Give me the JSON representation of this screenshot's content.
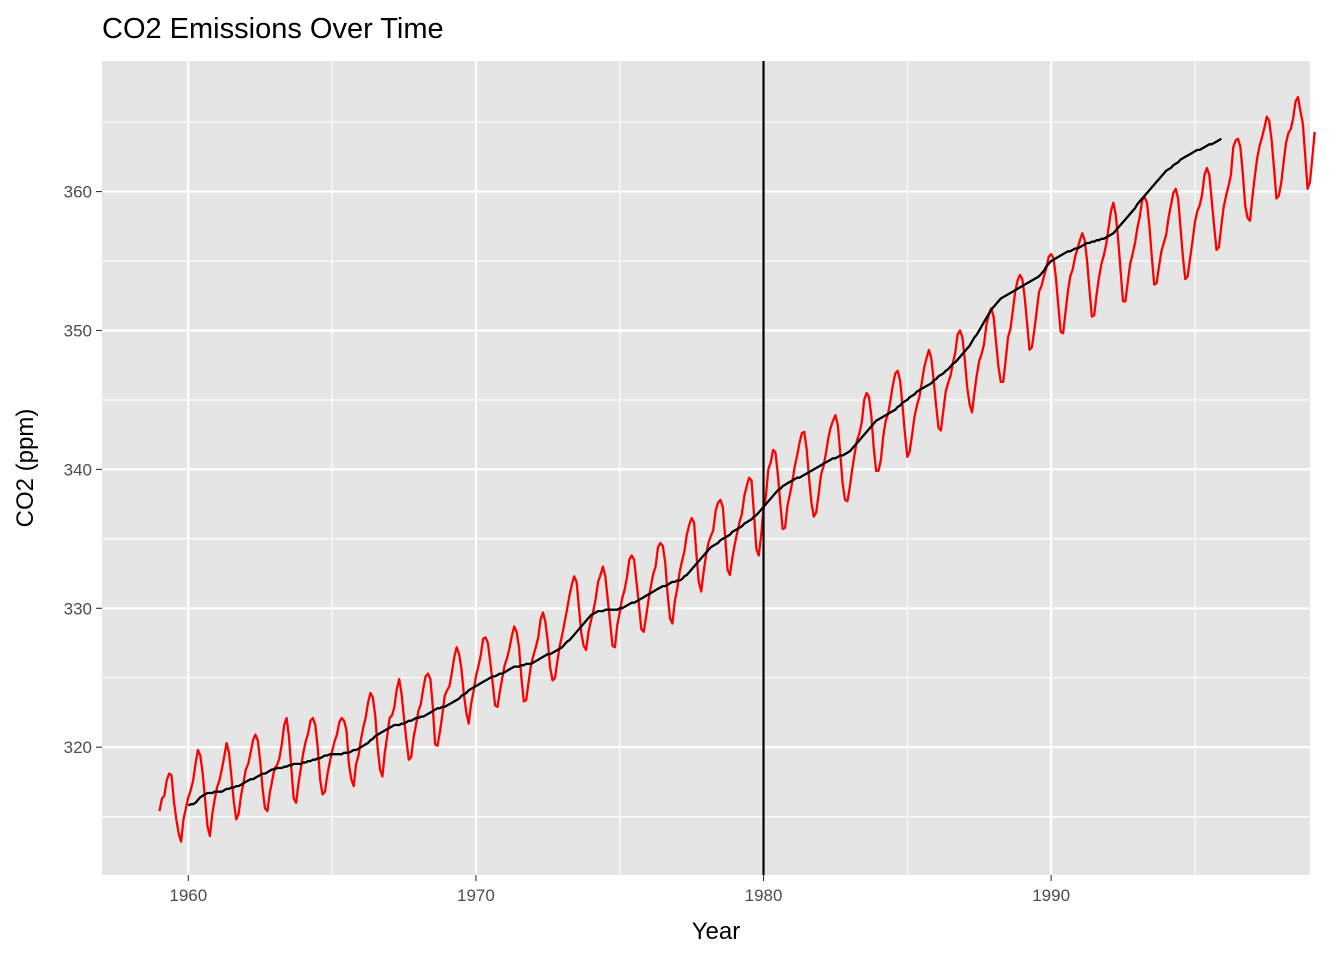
{
  "chart_data": {
    "type": "line",
    "title": "CO2 Emissions Over Time",
    "xlabel": "Year",
    "ylabel": "CO2 (ppm)",
    "xlim": [
      1957.0,
      1999.0
    ],
    "ylim": [
      310.8,
      369.4
    ],
    "x_ticks": [
      1960,
      1970,
      1980,
      1990
    ],
    "x_tick_labels": [
      "1960",
      "1970",
      "1980",
      "1990"
    ],
    "y_ticks": [
      320,
      330,
      340,
      350,
      360
    ],
    "y_tick_labels": [
      "320",
      "330",
      "340",
      "350",
      "360"
    ],
    "grid": true,
    "background": "#e5e5e5",
    "vline": {
      "x": 1980,
      "color": "#000000"
    },
    "series": [
      {
        "color": "#ff0000",
        "x_start": 1959.0,
        "x_step": 0.08333,
        "values": [
          315.4,
          316.3,
          316.5,
          317.6,
          318.1,
          318.0,
          316.1,
          314.8,
          313.8,
          313.2,
          314.8,
          315.6,
          316.4,
          316.9,
          317.6,
          318.8,
          319.8,
          319.4,
          318.1,
          316.2,
          314.3,
          313.6,
          315.2,
          316.2,
          317.1,
          317.6,
          318.4,
          319.3,
          320.3,
          319.6,
          317.9,
          316.1,
          314.8,
          315.2,
          316.5,
          317.4,
          318.4,
          318.8,
          319.6,
          320.5,
          320.9,
          320.5,
          319.0,
          317.0,
          315.6,
          315.4,
          316.7,
          317.6,
          318.5,
          318.7,
          319.2,
          320.2,
          321.6,
          322.1,
          320.8,
          318.5,
          316.3,
          316.0,
          317.4,
          318.5,
          319.6,
          320.4,
          321.0,
          321.9,
          322.1,
          321.6,
          320.0,
          317.7,
          316.6,
          316.8,
          318.0,
          318.9,
          319.7,
          320.4,
          320.9,
          321.8,
          322.1,
          321.9,
          321.2,
          318.8,
          317.7,
          317.2,
          318.8,
          319.4,
          320.5,
          321.4,
          322.1,
          323.2,
          323.9,
          323.6,
          322.3,
          320.0,
          318.4,
          317.9,
          319.6,
          320.8,
          322.1,
          322.3,
          322.9,
          324.2,
          324.9,
          323.8,
          322.1,
          320.5,
          319.1,
          319.3,
          320.7,
          321.6,
          322.6,
          323.1,
          324.2,
          325.1,
          325.3,
          324.9,
          322.9,
          320.2,
          320.1,
          321.1,
          322.3,
          323.7,
          324.1,
          324.4,
          325.4,
          326.5,
          327.2,
          326.7,
          325.6,
          323.8,
          322.5,
          321.7,
          323.1,
          324.0,
          325.1,
          325.8,
          326.6,
          327.8,
          327.9,
          327.5,
          326.1,
          324.6,
          323.0,
          322.9,
          324.0,
          325.0,
          325.9,
          326.4,
          327.1,
          328.0,
          328.7,
          328.3,
          327.2,
          325.0,
          323.3,
          323.4,
          324.7,
          325.9,
          326.6,
          327.2,
          327.9,
          329.2,
          329.7,
          329.0,
          327.6,
          325.7,
          324.8,
          325.0,
          326.2,
          327.3,
          328.1,
          329.0,
          329.9,
          330.9,
          331.7,
          332.3,
          331.9,
          330.0,
          328.2,
          327.3,
          327.0,
          328.3,
          329.1,
          329.8,
          330.7,
          331.9,
          332.4,
          333.0,
          332.3,
          330.7,
          329.0,
          327.3,
          327.2,
          328.8,
          329.7,
          330.7,
          331.3,
          332.2,
          333.5,
          333.8,
          333.5,
          331.9,
          330.3,
          328.5,
          328.3,
          329.4,
          330.6,
          331.6,
          332.5,
          333.0,
          334.4,
          334.7,
          334.5,
          333.3,
          331.0,
          329.3,
          328.9,
          330.5,
          331.4,
          332.6,
          333.4,
          334.1,
          335.3,
          336.0,
          336.5,
          336.2,
          333.9,
          331.9,
          331.2,
          332.6,
          333.8,
          334.7,
          335.2,
          335.6,
          337.0,
          337.6,
          337.8,
          337.3,
          335.1,
          332.8,
          332.4,
          333.6,
          334.6,
          335.4,
          336.2,
          336.8,
          338.1,
          338.8,
          339.4,
          339.2,
          336.9,
          334.3,
          333.8,
          335.2,
          337.1,
          338.1,
          340.0,
          340.5,
          341.4,
          341.2,
          339.6,
          337.5,
          335.7,
          335.8,
          337.4,
          338.2,
          339.1,
          340.2,
          341.0,
          341.9,
          342.6,
          342.7,
          341.5,
          339.4,
          337.6,
          336.6,
          336.9,
          338.2,
          339.6,
          340.2,
          341.1,
          342.2,
          343.0,
          343.5,
          343.9,
          343.2,
          341.2,
          339.0,
          337.8,
          337.7,
          338.7,
          340.0,
          341.1,
          342.1,
          342.6,
          343.4,
          345.0,
          345.5,
          345.2,
          343.8,
          341.6,
          339.9,
          339.9,
          340.7,
          342.4,
          343.5,
          344.0,
          345.0,
          346.1,
          346.9,
          347.1,
          346.4,
          344.6,
          342.6,
          340.9,
          341.3,
          342.5,
          343.8,
          344.6,
          345.2,
          346.2,
          347.3,
          348.0,
          348.6,
          348.0,
          346.4,
          344.6,
          343.0,
          342.8,
          344.2,
          345.6,
          346.2,
          346.7,
          347.6,
          348.4,
          349.7,
          350.0,
          349.5,
          347.9,
          345.9,
          344.7,
          344.1,
          345.5,
          346.8,
          347.8,
          348.3,
          349.0,
          350.4,
          351.1,
          351.6,
          351.0,
          349.2,
          347.4,
          346.3,
          346.3,
          347.8,
          349.5,
          350.1,
          351.4,
          352.8,
          353.6,
          354.0,
          353.7,
          352.4,
          350.5,
          348.6,
          348.8,
          350.0,
          351.4,
          352.8,
          353.2,
          353.9,
          354.5,
          355.3,
          355.5,
          355.2,
          353.8,
          351.8,
          349.9,
          349.8,
          351.3,
          352.8,
          353.9,
          354.4,
          355.3,
          355.9,
          356.5,
          357.0,
          356.5,
          355.0,
          352.9,
          351.0,
          351.1,
          352.6,
          353.8,
          354.8,
          355.4,
          356.2,
          357.4,
          358.6,
          359.2,
          358.3,
          356.5,
          354.3,
          352.1,
          352.1,
          353.5,
          354.8,
          355.5,
          356.3,
          357.4,
          358.2,
          359.4,
          359.6,
          359.2,
          357.5,
          355.3,
          353.3,
          353.4,
          354.6,
          355.7,
          356.3,
          356.9,
          358.1,
          359.0,
          359.9,
          360.2,
          359.5,
          357.4,
          355.3,
          353.7,
          353.9,
          355.2,
          356.4,
          357.8,
          358.6,
          359.0,
          359.8,
          361.2,
          361.7,
          361.2,
          359.4,
          357.5,
          355.8,
          356.0,
          357.5,
          358.9,
          359.7,
          360.4,
          361.2,
          363.2,
          363.7,
          363.8,
          363.2,
          361.3,
          359.0,
          358.1,
          357.9,
          359.6,
          361.1,
          362.4,
          363.3,
          363.9,
          364.6,
          365.4,
          365.1,
          363.7,
          361.7,
          359.5,
          359.7,
          360.6,
          362.1,
          363.5,
          364.2,
          364.5,
          365.3,
          366.5,
          366.8,
          365.8,
          364.9,
          362.6,
          360.2,
          360.7,
          362.5,
          364.3
        ]
      },
      {
        "color": "#000000",
        "x_start": 1960.0,
        "x_step": 0.08333,
        "values": [
          315.8,
          315.9,
          315.9,
          316.0,
          316.2,
          316.4,
          316.5,
          316.6,
          316.7,
          316.7,
          316.7,
          316.8,
          316.8,
          316.8,
          316.8,
          316.9,
          317.0,
          317.0,
          317.1,
          317.1,
          317.2,
          317.2,
          317.3,
          317.4,
          317.5,
          317.6,
          317.7,
          317.7,
          317.8,
          317.9,
          318.0,
          318.1,
          318.1,
          318.2,
          318.3,
          318.4,
          318.4,
          318.5,
          318.5,
          318.5,
          318.6,
          318.6,
          318.7,
          318.7,
          318.8,
          318.8,
          318.8,
          318.8,
          318.9,
          318.9,
          319.0,
          319.0,
          319.1,
          319.1,
          319.2,
          319.2,
          319.3,
          319.4,
          319.4,
          319.5,
          319.5,
          319.5,
          319.5,
          319.5,
          319.5,
          319.6,
          319.6,
          319.6,
          319.7,
          319.8,
          319.8,
          319.9,
          320.0,
          320.1,
          320.2,
          320.3,
          320.5,
          320.6,
          320.8,
          320.9,
          321.0,
          321.1,
          321.2,
          321.3,
          321.4,
          321.5,
          321.6,
          321.6,
          321.6,
          321.7,
          321.7,
          321.8,
          321.9,
          321.9,
          322.0,
          322.1,
          322.1,
          322.2,
          322.2,
          322.3,
          322.4,
          322.5,
          322.6,
          322.7,
          322.8,
          322.8,
          322.9,
          322.9,
          323.0,
          323.1,
          323.2,
          323.3,
          323.4,
          323.5,
          323.7,
          323.8,
          323.9,
          324.1,
          324.2,
          324.3,
          324.4,
          324.5,
          324.6,
          324.7,
          324.8,
          324.9,
          325.0,
          325.1,
          325.1,
          325.2,
          325.3,
          325.3,
          325.4,
          325.5,
          325.6,
          325.7,
          325.8,
          325.8,
          325.8,
          325.9,
          325.9,
          326.0,
          326.0,
          326.0,
          326.1,
          326.2,
          326.3,
          326.4,
          326.5,
          326.6,
          326.7,
          326.7,
          326.8,
          326.9,
          327.0,
          327.1,
          327.2,
          327.4,
          327.6,
          327.7,
          327.9,
          328.1,
          328.3,
          328.5,
          328.7,
          328.9,
          329.1,
          329.3,
          329.5,
          329.6,
          329.7,
          329.8,
          329.8,
          329.8,
          329.9,
          329.9,
          329.9,
          329.9,
          329.9,
          329.9,
          330.0,
          330.0,
          330.1,
          330.2,
          330.3,
          330.4,
          330.4,
          330.5,
          330.6,
          330.7,
          330.8,
          330.9,
          331.0,
          331.1,
          331.2,
          331.3,
          331.4,
          331.5,
          331.6,
          331.6,
          331.7,
          331.8,
          331.9,
          331.9,
          332.0,
          332.0,
          332.1,
          332.3,
          332.4,
          332.6,
          332.8,
          333.0,
          333.2,
          333.4,
          333.6,
          333.8,
          334.0,
          334.2,
          334.4,
          334.5,
          334.6,
          334.7,
          334.9,
          335.0,
          335.1,
          335.2,
          335.3,
          335.5,
          335.6,
          335.7,
          335.8,
          335.9,
          336.1,
          336.2,
          336.3,
          336.4,
          336.6,
          336.7,
          336.9,
          337.1,
          337.3,
          337.5,
          337.7,
          337.9,
          338.1,
          338.3,
          338.5,
          338.6,
          338.8,
          338.9,
          339.0,
          339.1,
          339.2,
          339.3,
          339.4,
          339.4,
          339.5,
          339.6,
          339.7,
          339.8,
          339.9,
          340.0,
          340.1,
          340.2,
          340.3,
          340.4,
          340.5,
          340.6,
          340.7,
          340.8,
          340.8,
          340.9,
          341.0,
          341.0,
          341.1,
          341.2,
          341.3,
          341.5,
          341.7,
          341.9,
          342.1,
          342.3,
          342.5,
          342.7,
          342.9,
          343.1,
          343.3,
          343.5,
          343.6,
          343.7,
          343.8,
          343.9,
          344.0,
          344.1,
          344.2,
          344.3,
          344.5,
          344.6,
          344.8,
          344.9,
          345.0,
          345.2,
          345.3,
          345.4,
          345.6,
          345.7,
          345.8,
          345.9,
          346.0,
          346.1,
          346.2,
          346.4,
          346.5,
          346.7,
          346.8,
          346.9,
          347.1,
          347.2,
          347.4,
          347.6,
          347.7,
          347.9,
          348.1,
          348.3,
          348.5,
          348.7,
          348.9,
          349.2,
          349.5,
          349.7,
          350.0,
          350.3,
          350.6,
          350.9,
          351.2,
          351.5,
          351.7,
          351.9,
          352.1,
          352.3,
          352.4,
          352.5,
          352.6,
          352.7,
          352.8,
          352.9,
          353.0,
          353.1,
          353.2,
          353.3,
          353.4,
          353.5,
          353.6,
          353.7,
          353.8,
          353.9,
          354.1,
          354.3,
          354.6,
          354.8,
          355.0,
          355.1,
          355.2,
          355.3,
          355.4,
          355.5,
          355.6,
          355.7,
          355.7,
          355.8,
          355.9,
          355.9,
          356.0,
          356.1,
          356.2,
          356.3,
          356.3,
          356.4,
          356.4,
          356.5,
          356.5,
          356.6,
          356.6,
          356.7,
          356.8,
          356.9,
          357.0,
          357.2,
          357.4,
          357.6,
          357.8,
          358.0,
          358.2,
          358.4,
          358.6,
          358.8,
          359.1,
          359.3,
          359.5,
          359.7,
          359.9,
          360.1,
          360.3,
          360.5,
          360.7,
          360.9,
          361.1,
          361.3,
          361.5,
          361.6,
          361.7,
          361.9,
          362.0,
          362.1,
          362.3,
          362.4,
          362.5,
          362.6,
          362.7,
          362.8,
          362.9,
          363.0,
          363.0,
          363.1,
          363.2,
          363.3,
          363.4,
          363.4,
          363.5,
          363.6,
          363.7,
          363.8
        ]
      }
    ]
  }
}
